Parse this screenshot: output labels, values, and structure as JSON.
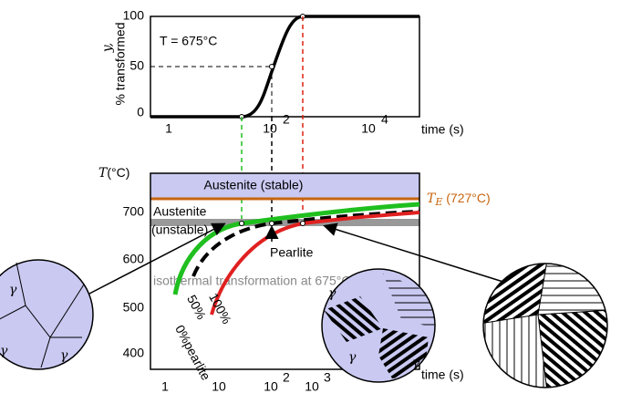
{
  "top_plot": {
    "y_label_1": "y,",
    "y_label_2": "% transformed",
    "y_ticks": [
      "100",
      "50",
      "0"
    ],
    "annotation": "T = 675°C",
    "x_ticks": [
      {
        "base": "1",
        "exp": ""
      },
      {
        "base": "10",
        "exp": "2"
      },
      {
        "base": "10",
        "exp": "4"
      }
    ],
    "x_label": "time (s)"
  },
  "bottom_plot": {
    "y_label_italic": "T",
    "y_label_unit": "(°C)",
    "y_ticks": [
      "700",
      "600",
      "500",
      "400"
    ],
    "stable_region": "Austenite (stable)",
    "te_label_italic": "T",
    "te_label_sub": "E",
    "te_label_value": " (727°C)",
    "unstable_line_1": "Austenite",
    "unstable_line_2": "(unstable)",
    "pearlite": "Pearlite",
    "isothermal": "isothermal transformation at 675°C",
    "curve_labels": [
      "0%pearlite",
      "50%",
      "100%"
    ],
    "x_ticks": [
      {
        "base": "1",
        "exp": ""
      },
      {
        "base": "10",
        "exp": ""
      },
      {
        "base": "10",
        "exp": "2"
      },
      {
        "base": "10",
        "exp": "3"
      }
    ],
    "x_label": "time (s)"
  },
  "grains": [
    "γ",
    "γ",
    "γ",
    "γ",
    "γ",
    "γ"
  ]
}
